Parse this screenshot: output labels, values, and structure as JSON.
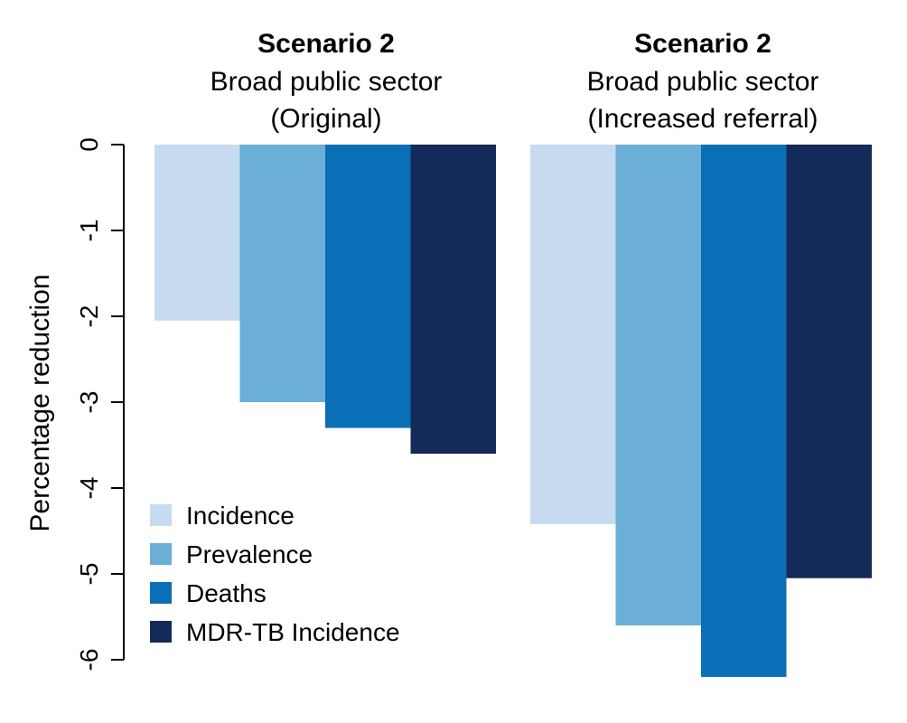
{
  "chart_data": {
    "type": "bar",
    "ylabel": "Percentage reduction",
    "ylim": [
      -6,
      0
    ],
    "yticks": [
      "0",
      "-1",
      "-2",
      "-3",
      "-4",
      "-5",
      "-6"
    ],
    "grid": false,
    "legend_position": "bottom-left",
    "series_names": [
      "Incidence",
      "Prevalence",
      "Deaths",
      "MDR-TB Incidence"
    ],
    "colors": [
      "#c6dbef",
      "#6baed6",
      "#0b6fb8",
      "#142a58"
    ],
    "panels": [
      {
        "title": "Scenario 2",
        "subtitle_line1": "Broad public sector",
        "subtitle_line2": "(Original)",
        "values": [
          -2.05,
          -3.0,
          -3.3,
          -3.6
        ]
      },
      {
        "title": "Scenario 2",
        "subtitle_line1": "Broad public sector",
        "subtitle_line2": "(Increased referral)",
        "values": [
          -4.42,
          -5.6,
          -6.2,
          -5.05
        ]
      }
    ]
  }
}
